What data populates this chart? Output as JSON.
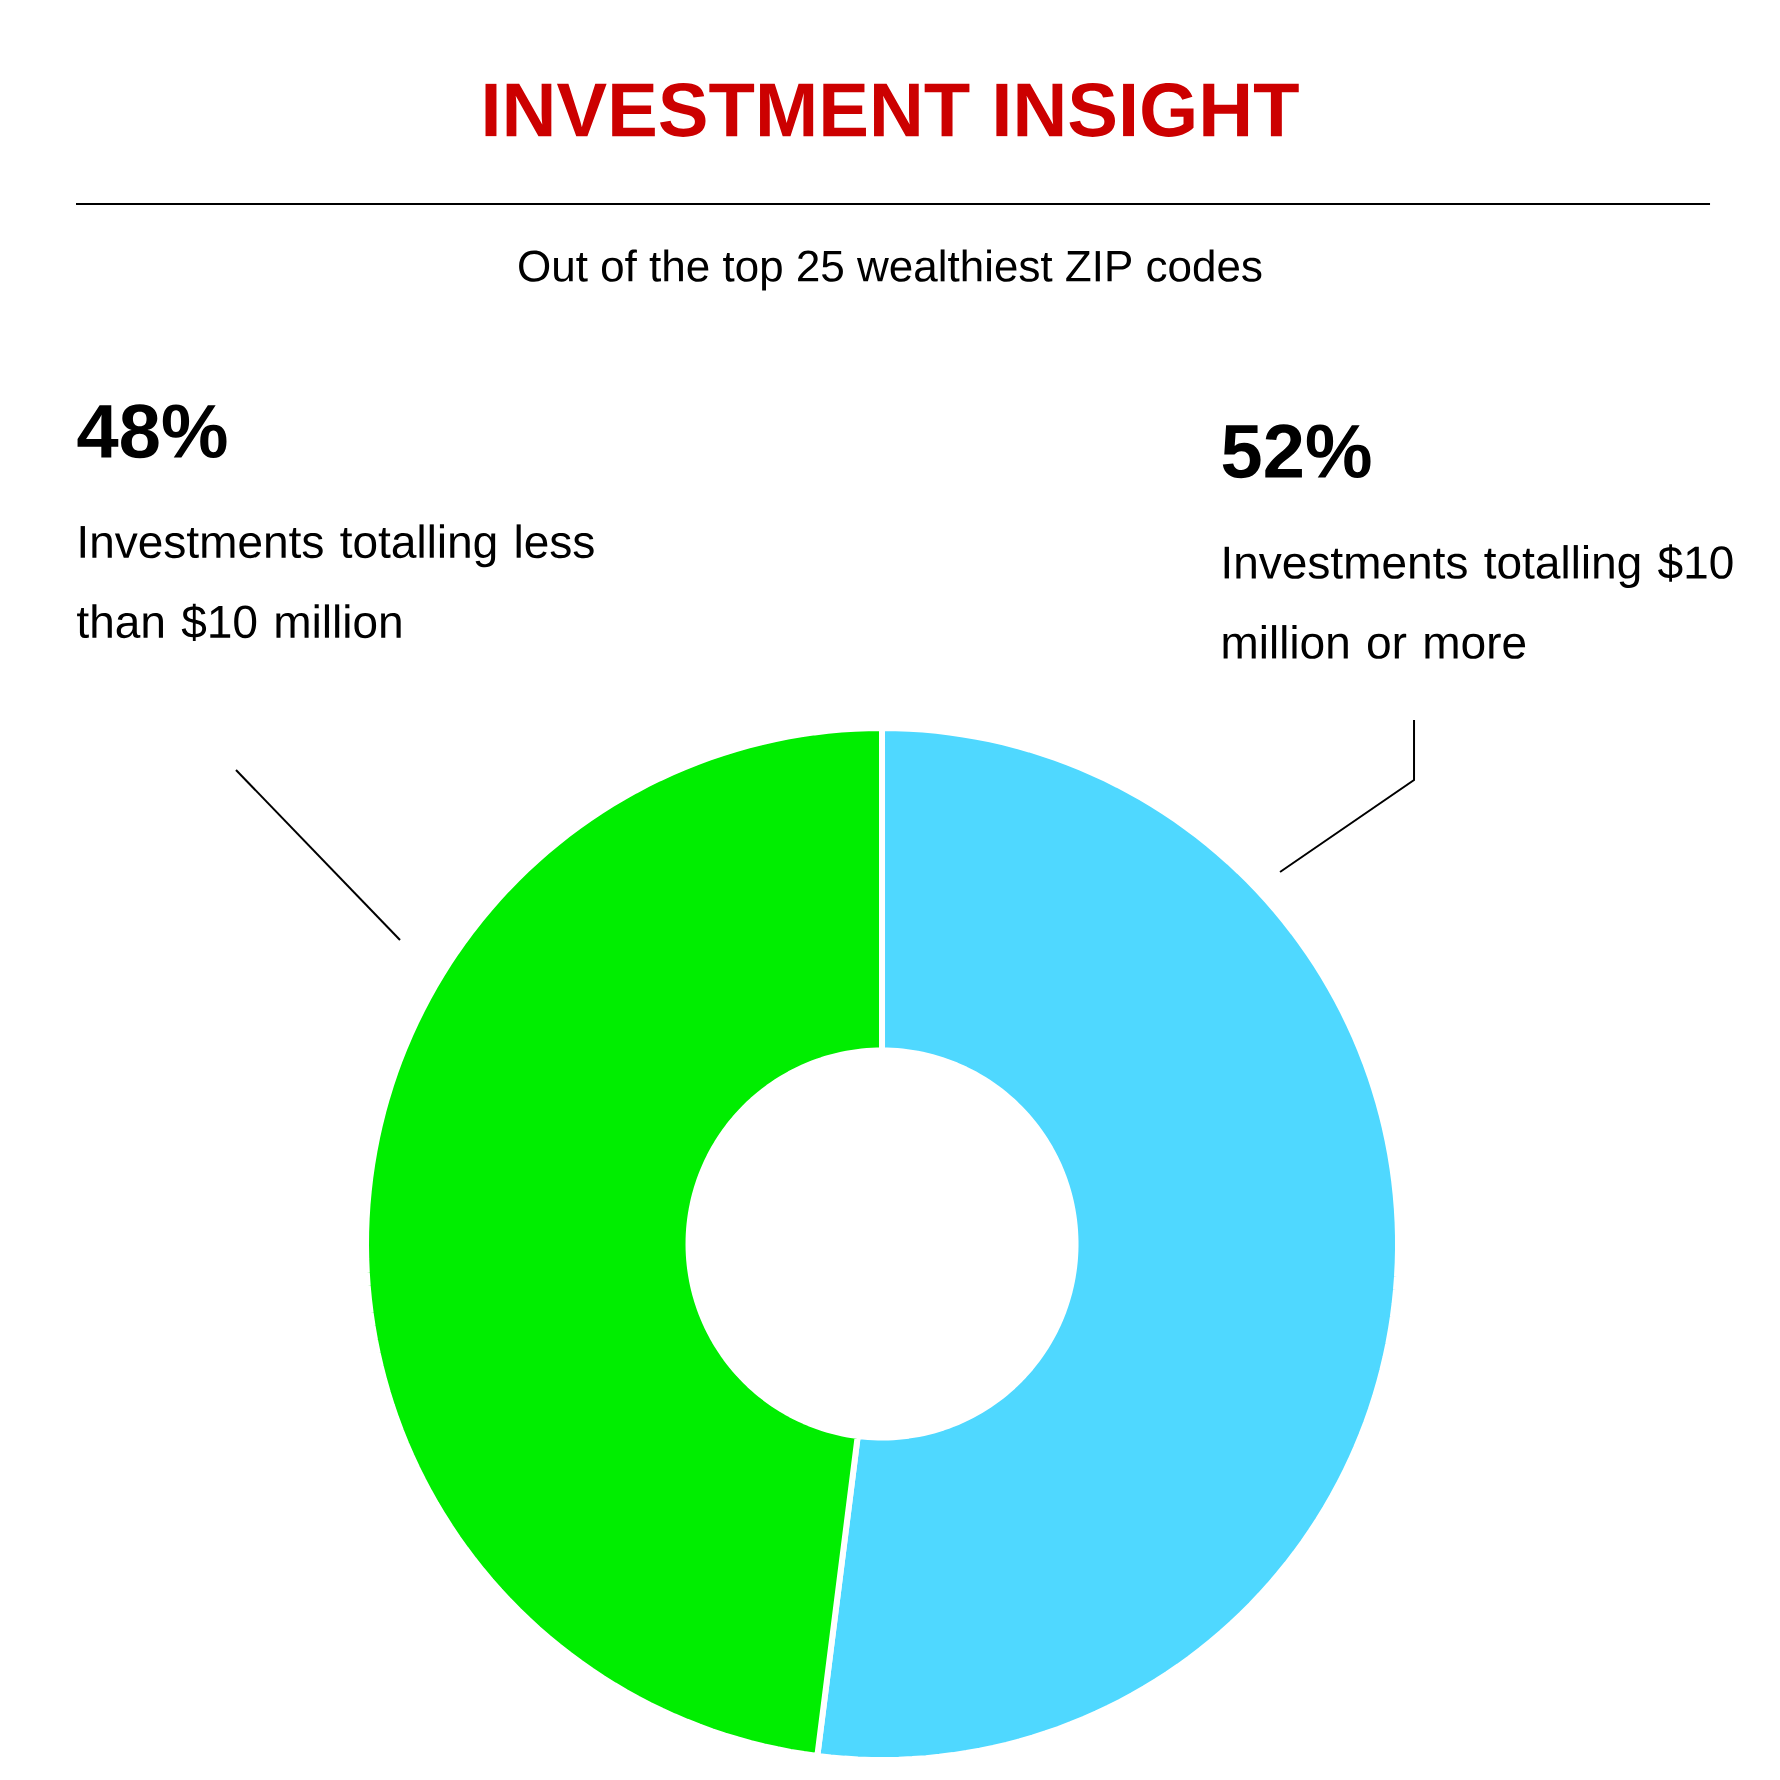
{
  "chart_data": {
    "type": "donut",
    "title": "INVESTMENT INSIGHT",
    "subtitle": "Out of the top 25 wealthiest ZIP codes",
    "categories": [
      "Investments totalling $10 million or more",
      "Investments totalling less than $10 million"
    ],
    "values": [
      52,
      48
    ],
    "colors": [
      "#4fd8ff",
      "#00ee00"
    ],
    "value_labels": [
      "52%",
      "48%"
    ]
  }
}
